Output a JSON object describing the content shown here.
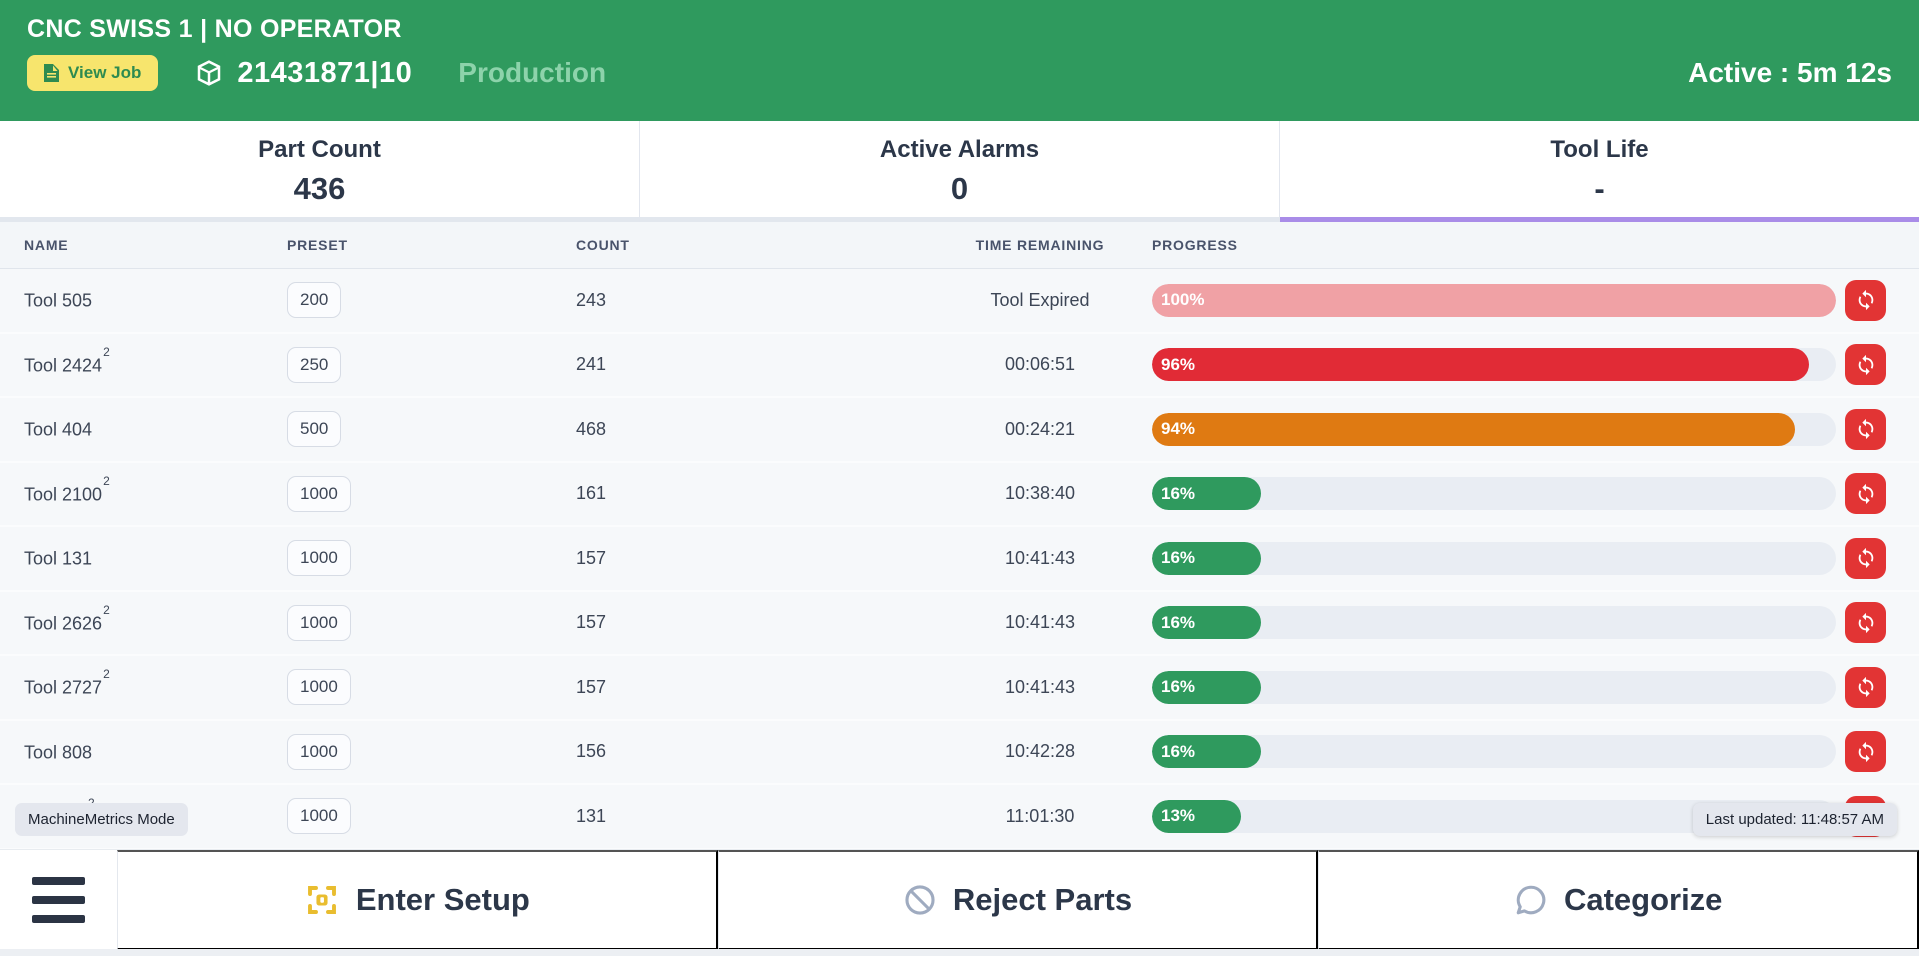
{
  "colors": {
    "header_green": "#2f9a5e",
    "production_text": "#8dd3ab",
    "view_job_yellow": "#f7e56d",
    "view_job_text": "#2e8b50",
    "active_tab_purple": "#a98ce8",
    "refresh_red": "#e23434",
    "bar_salmon": "#f0a1a5",
    "bar_red": "#e12b36",
    "bar_orange": "#df7a12",
    "bar_green": "#2f9a5e",
    "track_gray": "#e9edf3"
  },
  "header": {
    "machine_title": "CNC SWISS 1 | NO OPERATOR",
    "view_job_label": "View Job",
    "job_number": "21431871|10",
    "status_label": "Production",
    "active_time": "Active : 5m 12s"
  },
  "stats": {
    "items": [
      {
        "label": "Part Count",
        "value": "436"
      },
      {
        "label": "Active Alarms",
        "value": "0"
      },
      {
        "label": "Tool Life",
        "value": "-"
      }
    ]
  },
  "table": {
    "columns": [
      "NAME",
      "PRESET",
      "COUNT",
      "TIME REMAINING",
      "PROGRESS"
    ],
    "rows": [
      {
        "name": "Tool 505",
        "sup": "",
        "preset": "200",
        "count": "243",
        "time": "Tool Expired",
        "progress_label": "100%",
        "progress_pct": 100,
        "progress_color": "#f0a1a5"
      },
      {
        "name": "Tool 2424",
        "sup": "2",
        "preset": "250",
        "count": "241",
        "time": "00:06:51",
        "progress_label": "96%",
        "progress_pct": 96,
        "progress_color": "#e12b36"
      },
      {
        "name": "Tool 404",
        "sup": "",
        "preset": "500",
        "count": "468",
        "time": "00:24:21",
        "progress_label": "94%",
        "progress_pct": 94,
        "progress_color": "#df7a12"
      },
      {
        "name": "Tool 2100",
        "sup": "2",
        "preset": "1000",
        "count": "161",
        "time": "10:38:40",
        "progress_label": "16%",
        "progress_pct": 16,
        "progress_color": "#2f9a5e"
      },
      {
        "name": "Tool 131",
        "sup": "",
        "preset": "1000",
        "count": "157",
        "time": "10:41:43",
        "progress_label": "16%",
        "progress_pct": 16,
        "progress_color": "#2f9a5e"
      },
      {
        "name": "Tool 2626",
        "sup": "2",
        "preset": "1000",
        "count": "157",
        "time": "10:41:43",
        "progress_label": "16%",
        "progress_pct": 16,
        "progress_color": "#2f9a5e"
      },
      {
        "name": "Tool 2727",
        "sup": "2",
        "preset": "1000",
        "count": "157",
        "time": "10:41:43",
        "progress_label": "16%",
        "progress_pct": 16,
        "progress_color": "#2f9a5e"
      },
      {
        "name": "Tool 808",
        "sup": "",
        "preset": "1000",
        "count": "156",
        "time": "10:42:28",
        "progress_label": "16%",
        "progress_pct": 16,
        "progress_color": "#2f9a5e"
      },
      {
        "name": "",
        "sup": "2",
        "preset": "1000",
        "count": "131",
        "time": "11:01:30",
        "progress_label": "13%",
        "progress_pct": 13,
        "progress_color": "#2f9a5e"
      }
    ]
  },
  "overlays": {
    "mode_badge": "MachineMetrics Mode",
    "last_updated": "Last updated: 11:48:57 AM"
  },
  "bottom_bar": {
    "items": [
      {
        "label": "Enter Setup"
      },
      {
        "label": "Reject Parts"
      },
      {
        "label": "Categorize"
      }
    ]
  }
}
